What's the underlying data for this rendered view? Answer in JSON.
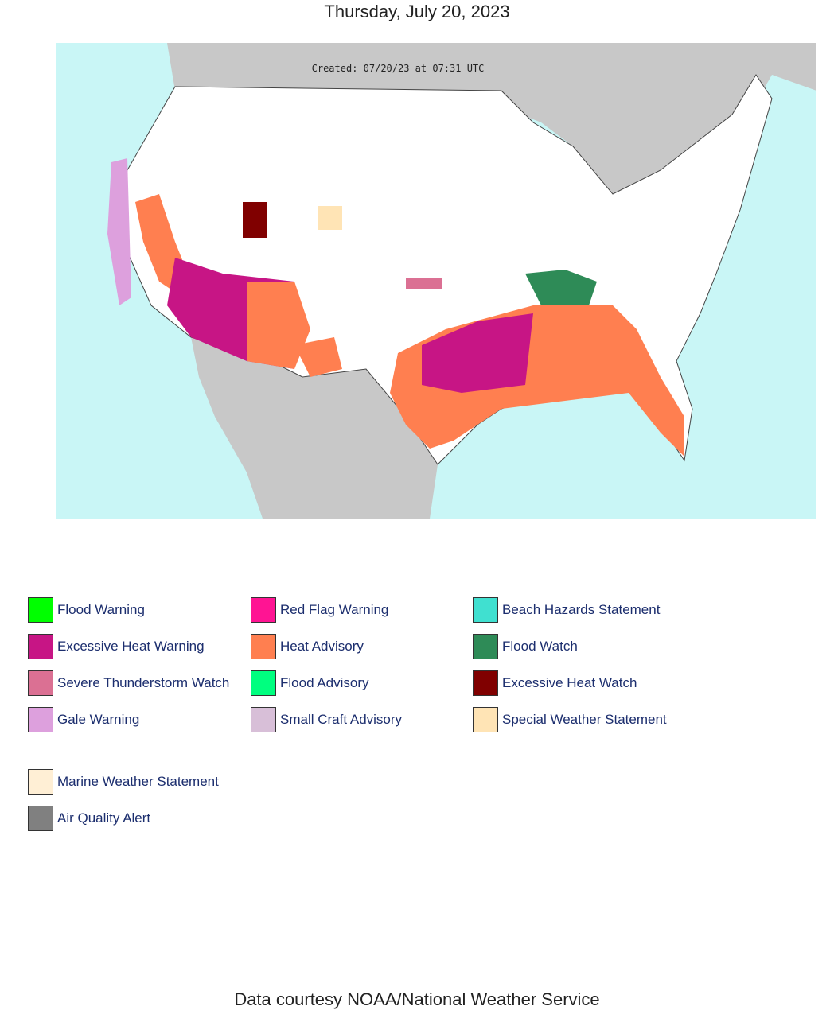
{
  "header": {
    "title": "Thursday, July 20, 2023"
  },
  "map": {
    "created": "Created: 07/20/23 at 07:31 UTC"
  },
  "legend": {
    "columns": [
      [
        {
          "label": "Flood Warning",
          "color": "#00ff00"
        },
        {
          "label": "Excessive Heat Warning",
          "color": "#c71585"
        },
        {
          "label": "Severe Thunderstorm Watch",
          "color": "#db7093"
        },
        {
          "label": "Gale Warning",
          "color": "#dda0dd"
        }
      ],
      [
        {
          "label": "Red Flag Warning",
          "color": "#ff1493"
        },
        {
          "label": "Heat Advisory",
          "color": "#ff7f50"
        },
        {
          "label": "Flood Advisory",
          "color": "#00ff7f"
        },
        {
          "label": "Small Craft Advisory",
          "color": "#d8bfd8"
        }
      ],
      [
        {
          "label": "Beach Hazards Statement",
          "color": "#40e0d0"
        },
        {
          "label": "Flood Watch",
          "color": "#2e8b57"
        },
        {
          "label": "Excessive Heat Watch",
          "color": "#800000"
        },
        {
          "label": "Special Weather Statement",
          "color": "#ffe4b5"
        }
      ]
    ],
    "extra": [
      {
        "label": "Marine Weather Statement",
        "color": "#ffefd5"
      },
      {
        "label": "Air Quality Alert",
        "color": "#808080"
      }
    ]
  },
  "footer": {
    "text": "Data courtesy NOAA/National Weather Service"
  }
}
